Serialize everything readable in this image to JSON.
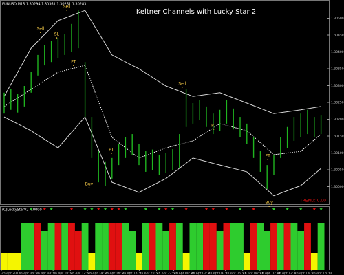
{
  "chart_data": {
    "type": "range_bar",
    "title": "Keltner Channels with Lucky Star 2",
    "header": "EURUSD,M15 1.30294 1.30361 1.30261 1.30283",
    "ylim": [
      1.2995,
      1.3055
    ],
    "yticks": [
      {
        "value": 1.3,
        "label": "1.30000"
      },
      {
        "value": 1.3005,
        "label": "1.30050"
      },
      {
        "value": 1.301,
        "label": "1.30100"
      },
      {
        "value": 1.3015,
        "label": "1.30150"
      },
      {
        "value": 1.302,
        "label": "1.30200"
      },
      {
        "value": 1.3025,
        "label": "1.30250"
      },
      {
        "value": 1.303,
        "label": "1.30300"
      },
      {
        "value": 1.3035,
        "label": "1.30350"
      },
      {
        "value": 1.304,
        "label": "1.30400"
      },
      {
        "value": 1.3045,
        "label": "1.30450"
      },
      {
        "value": 1.305,
        "label": "1.30500"
      }
    ],
    "x_labels": [
      "25 Apr 2013",
      "25 Apr 06:30",
      "25 Apr 08:30",
      "25 Apr 10:30",
      "25 Apr 12:30",
      "25 Apr 14:30",
      "25 Apr 16:30",
      "25 Apr 18:30",
      "25 Apr 20:30",
      "25 Apr 22:30",
      "26 Apr 00:30",
      "26 Apr 02:30",
      "26 Apr 04:30",
      "26 Apr 06:30",
      "26 Apr 08:30",
      "26 Apr 10:30",
      "26 Apr 12:30",
      "26 Apr 14:30",
      "26 Apr 16:30"
    ],
    "color": "#1fb51f",
    "high": [
      1.30279,
      1.30289,
      1.30275,
      1.30299,
      1.3034,
      1.30391,
      1.30421,
      1.30432,
      1.30442,
      1.30452,
      1.30483,
      1.30523,
      1.3037,
      1.30207,
      1.30105,
      1.30075,
      1.30085,
      1.30126,
      1.30146,
      1.30156,
      1.30126,
      1.30105,
      1.3011,
      1.30095,
      1.301,
      1.30111,
      1.30156,
      1.30289,
      1.30248,
      1.30258,
      1.30238,
      1.30217,
      1.30228,
      1.30258,
      1.30232,
      1.30207,
      1.30187,
      1.30146,
      1.30105,
      1.30064,
      1.30095,
      1.30146,
      1.30177,
      1.30207,
      1.30217,
      1.30228,
      1.30207,
      1.30211
    ],
    "low": [
      1.30217,
      1.30228,
      1.3022,
      1.30238,
      1.30279,
      1.3033,
      1.3036,
      1.3037,
      1.30381,
      1.30391,
      1.30401,
      1.30411,
      1.30207,
      1.30085,
      1.30013,
      1.30003,
      1.30024,
      1.30064,
      1.30085,
      1.30095,
      1.30064,
      1.30044,
      1.3005,
      1.30034,
      1.3004,
      1.3005,
      1.30054,
      1.30177,
      1.30187,
      1.30197,
      1.30177,
      1.30156,
      1.30166,
      1.30187,
      1.3017,
      1.30146,
      1.30126,
      1.30085,
      1.30044,
      1.29993,
      1.30034,
      1.30085,
      1.30115,
      1.30136,
      1.30146,
      1.30156,
      1.30146,
      1.30156
    ],
    "bands": {
      "x": [
        0,
        4,
        8,
        12,
        16,
        20,
        24,
        28,
        32,
        36,
        40,
        44,
        47
      ],
      "series": [
        {
          "color": "#d8d8d8",
          "dashed": false,
          "values": [
            1.30268,
            1.30411,
            1.30493,
            1.30523,
            1.30391,
            1.3035,
            1.30299,
            1.30268,
            1.30279,
            1.30248,
            1.30217,
            1.30228,
            1.30238
          ]
        },
        {
          "color": "#ffffff",
          "dashed": true,
          "values": [
            1.30238,
            1.30289,
            1.3034,
            1.3036,
            1.30146,
            1.30085,
            1.30115,
            1.30136,
            1.30187,
            1.30166,
            1.30095,
            1.30105,
            1.30156
          ]
        },
        {
          "color": "#d8d8d8",
          "dashed": false,
          "values": [
            1.30207,
            1.30166,
            1.30115,
            1.30207,
            1.30013,
            1.29983,
            1.30024,
            1.30085,
            1.30064,
            1.30044,
            1.29973,
            1.30003,
            1.30054
          ]
        }
      ]
    },
    "annotations": [
      {
        "text": "Sell",
        "x": 5.4,
        "y": 1.30468
      },
      {
        "text": "SL",
        "x": 7.8,
        "y": 1.30452
      },
      {
        "text": "Sell",
        "x": 9.3,
        "y": 1.30534
      },
      {
        "text": "PT",
        "x": 10.3,
        "y": 1.3037
      },
      {
        "text": "Buy",
        "x": 12.6,
        "y": 1.30007
      },
      {
        "text": "PT",
        "x": 15.9,
        "y": 1.30109
      },
      {
        "text": "Sell",
        "x": 26.4,
        "y": 1.30305
      },
      {
        "text": "PT",
        "x": 31.1,
        "y": 1.30181
      },
      {
        "text": "PT",
        "x": 39.1,
        "y": 1.30091
      },
      {
        "text": "Buy",
        "x": 39.3,
        "y": 1.29952
      }
    ],
    "annotation_color": "#ffd24a",
    "trend_text": "TREND: 0.00",
    "indicator": {
      "label": "(C)LuckyStarV2 4.0000",
      "ylim": [
        0,
        1
      ],
      "values": [
        0.3,
        0.3,
        0.3,
        0.85,
        0.85,
        0.85,
        0.7,
        0.85,
        0.85,
        0.85,
        0.85,
        0.7,
        0.85,
        0.3,
        0.85,
        0.85,
        0.85,
        0.85,
        0.85,
        0.7,
        0.3,
        0.85,
        0.85,
        0.85,
        0.7,
        0.85,
        0.85,
        0.3,
        0.85,
        0.85,
        0.85,
        0.85,
        0.7,
        0.85,
        0.85,
        0.85,
        0.3,
        0.85,
        0.85,
        0.7,
        0.85,
        0.85,
        0.85,
        0.85,
        0.7,
        0.85,
        0.3,
        0.85
      ],
      "colors": [
        "#f5f500",
        "#f5f500",
        "#f5f500",
        "#2ecc2e",
        "#2ecc2e",
        "#e01010",
        "#2ecc2e",
        "#2ecc2e",
        "#e01010",
        "#2ecc2e",
        "#e01010",
        "#e01010",
        "#2ecc2e",
        "#f5f500",
        "#2ecc2e",
        "#2ecc2e",
        "#e01010",
        "#e01010",
        "#2ecc2e",
        "#2ecc2e",
        "#f5f500",
        "#2ecc2e",
        "#e01010",
        "#2ecc2e",
        "#2ecc2e",
        "#e01010",
        "#2ecc2e",
        "#f5f500",
        "#2ecc2e",
        "#2ecc2e",
        "#e01010",
        "#e01010",
        "#2ecc2e",
        "#e01010",
        "#2ecc2e",
        "#2ecc2e",
        "#f5f500",
        "#e01010",
        "#2ecc2e",
        "#2ecc2e",
        "#e01010",
        "#2ecc2e",
        "#e01010",
        "#2ecc2e",
        "#2ecc2e",
        "#e01010",
        "#f5f500",
        "#2ecc2e"
      ],
      "stars": [
        {
          "x": 4,
          "color": "#2ecc2e"
        },
        {
          "x": 6,
          "color": "#e01010"
        },
        {
          "x": 7,
          "color": "#2ecc2e"
        },
        {
          "x": 10,
          "color": "#e01010"
        },
        {
          "x": 12,
          "color": "#2ecc2e"
        },
        {
          "x": 13,
          "color": "#2ecc2e"
        },
        {
          "x": 14,
          "color": "#e01010"
        },
        {
          "x": 15,
          "color": "#2ecc2e"
        },
        {
          "x": 16,
          "color": "#e01010"
        },
        {
          "x": 17,
          "color": "#e01010"
        },
        {
          "x": 18,
          "color": "#2ecc2e"
        },
        {
          "x": 21,
          "color": "#2ecc2e"
        },
        {
          "x": 23,
          "color": "#2ecc2e"
        },
        {
          "x": 24,
          "color": "#e01010"
        },
        {
          "x": 25,
          "color": "#2ecc2e"
        },
        {
          "x": 27,
          "color": "#e01010"
        },
        {
          "x": 30,
          "color": "#e01010"
        },
        {
          "x": 31,
          "color": "#e01010"
        },
        {
          "x": 33,
          "color": "#e01010"
        },
        {
          "x": 35,
          "color": "#2ecc2e"
        },
        {
          "x": 37,
          "color": "#e01010"
        },
        {
          "x": 40,
          "color": "#2ecc2e"
        },
        {
          "x": 42,
          "color": "#2ecc2e"
        },
        {
          "x": 44,
          "color": "#2ecc2e"
        },
        {
          "x": 46,
          "color": "#e01010"
        },
        {
          "x": 47,
          "color": "#2ecc2e"
        }
      ]
    }
  }
}
